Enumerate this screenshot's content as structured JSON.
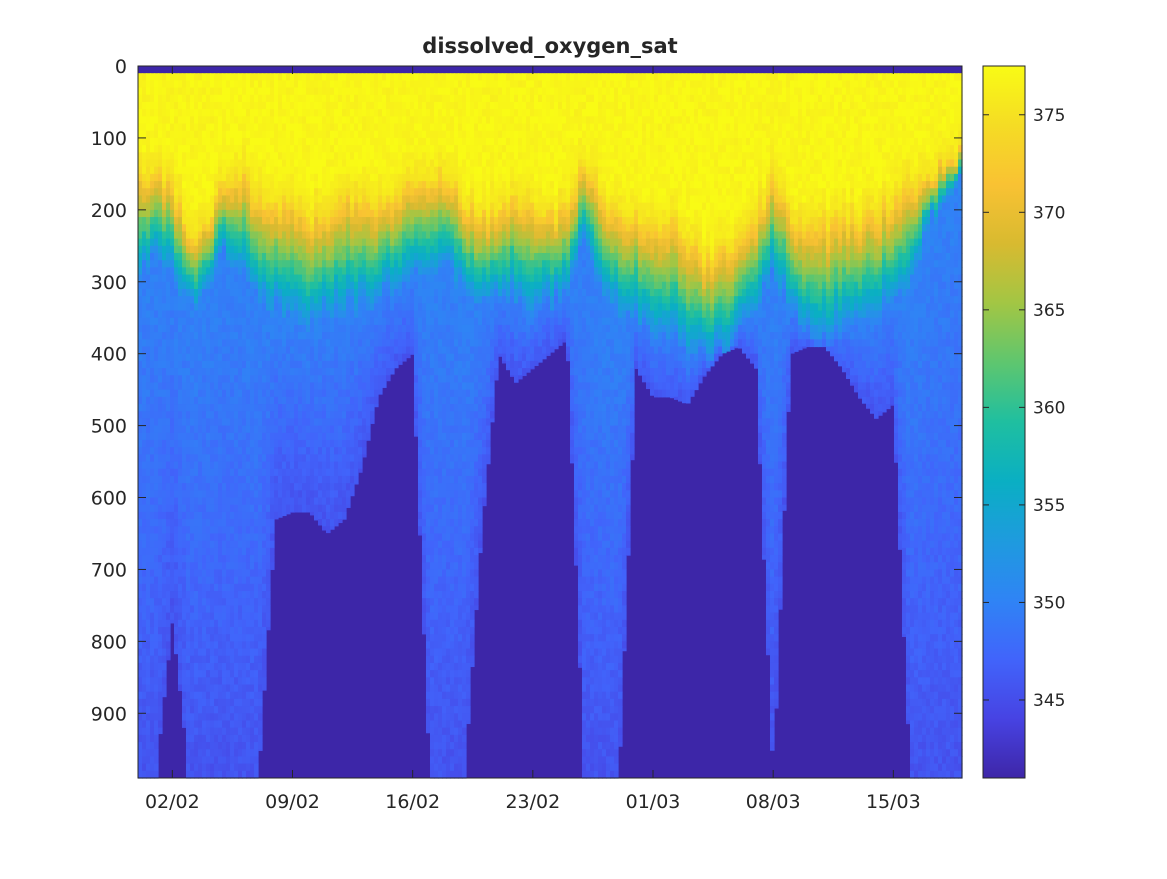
{
  "chart_data": {
    "type": "heatmap",
    "title": "dissolved_oxygen_sat",
    "xlabel": "",
    "ylabel": "",
    "x_tick_labels": [
      "02/02",
      "09/02",
      "16/02",
      "23/02",
      "01/03",
      "08/03",
      "15/03"
    ],
    "x_tick_dates": [
      "2024-02-02",
      "2024-02-09",
      "2024-02-16",
      "2024-02-23",
      "2024-03-01",
      "2024-03-08",
      "2024-03-15"
    ],
    "xlim": [
      "2024-01-31",
      "2024-03-19"
    ],
    "y_ticks": [
      0,
      100,
      200,
      300,
      400,
      500,
      600,
      700,
      800,
      900
    ],
    "ylim": [
      0,
      990
    ],
    "y_reversed": true,
    "colorbar": {
      "range": [
        341,
        377.5
      ],
      "ticks": [
        345,
        350,
        355,
        360,
        365,
        370,
        375
      ],
      "colormap": "parula",
      "colors": [
        "#3e26a8",
        "#4743e3",
        "#4164fb",
        "#2f84f5",
        "#1e9bde",
        "#0aafc3",
        "#1fbfa0",
        "#5ec66f",
        "#a2c644",
        "#d8ba30",
        "#f9c233",
        "#f5dc24",
        "#f9fb15"
      ]
    },
    "nodata_color": "#3d26a8",
    "surface_layer": {
      "days": [
        "2024-01-31",
        "2024-02-01",
        "2024-02-02",
        "2024-02-03",
        "2024-02-04",
        "2024-02-05",
        "2024-02-06",
        "2024-02-07",
        "2024-02-08",
        "2024-02-09",
        "2024-02-10",
        "2024-02-11",
        "2024-02-12",
        "2024-02-13",
        "2024-02-14",
        "2024-02-15",
        "2024-02-16",
        "2024-02-17",
        "2024-02-18",
        "2024-02-19",
        "2024-02-20",
        "2024-02-21",
        "2024-02-22",
        "2024-02-23",
        "2024-02-24",
        "2024-02-25",
        "2024-02-26",
        "2024-02-27",
        "2024-02-28",
        "2024-02-29",
        "2024-03-01",
        "2024-03-02",
        "2024-03-03",
        "2024-03-04",
        "2024-03-05",
        "2024-03-06",
        "2024-03-07",
        "2024-03-08",
        "2024-03-09",
        "2024-03-10",
        "2024-03-11",
        "2024-03-12",
        "2024-03-13",
        "2024-03-14",
        "2024-03-15",
        "2024-03-16",
        "2024-03-17",
        "2024-03-18",
        "2024-03-19"
      ],
      "yellow_layer_depth": [
        150,
        130,
        160,
        220,
        210,
        160,
        140,
        170,
        190,
        180,
        200,
        190,
        170,
        180,
        180,
        170,
        150,
        160,
        140,
        180,
        200,
        190,
        180,
        190,
        200,
        190,
        120,
        180,
        190,
        200,
        200,
        210,
        230,
        260,
        250,
        230,
        200,
        150,
        200,
        210,
        210,
        200,
        200,
        190,
        180,
        160,
        150,
        120,
        110
      ],
      "gradient_bottom_depth": [
        280,
        260,
        280,
        330,
        300,
        260,
        280,
        320,
        330,
        340,
        350,
        340,
        330,
        330,
        320,
        300,
        270,
        280,
        260,
        310,
        330,
        320,
        310,
        330,
        320,
        310,
        240,
        300,
        330,
        340,
        360,
        370,
        390,
        400,
        390,
        370,
        330,
        270,
        340,
        360,
        370,
        360,
        350,
        340,
        330,
        300,
        220,
        180,
        160
      ],
      "floor_depth": [
        990,
        990,
        770,
        990,
        990,
        990,
        990,
        990,
        630,
        620,
        620,
        650,
        630,
        560,
        460,
        420,
        400,
        990,
        990,
        990,
        650,
        400,
        440,
        420,
        400,
        380,
        990,
        990,
        990,
        420,
        460,
        460,
        470,
        430,
        400,
        390,
        420,
        990,
        400,
        390,
        390,
        420,
        460,
        490,
        470,
        990,
        990,
        990,
        990
      ]
    }
  }
}
